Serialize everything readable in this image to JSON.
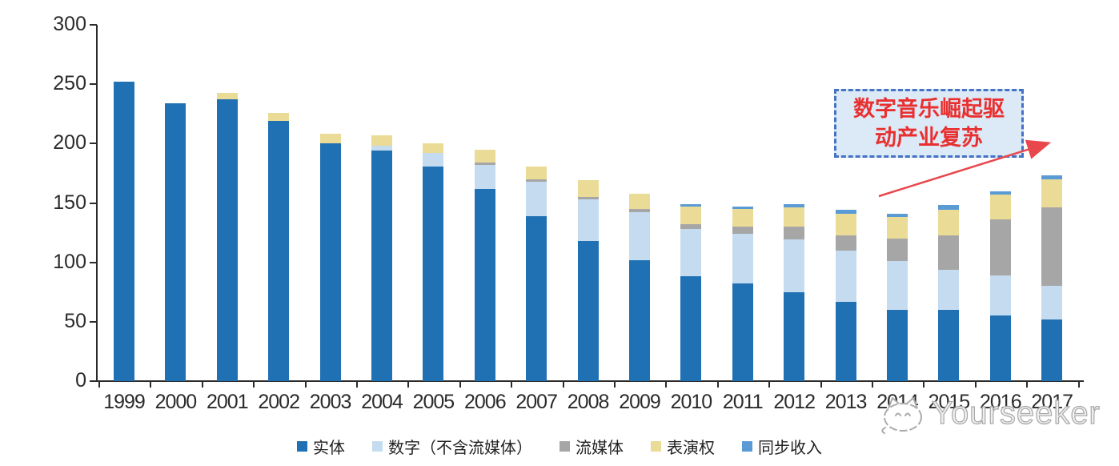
{
  "chart_data": {
    "type": "bar",
    "stacked": true,
    "title": "",
    "xlabel": "",
    "ylabel": "",
    "ylim": [
      0,
      300
    ],
    "y_ticks": [
      0,
      50,
      100,
      150,
      200,
      250,
      300
    ],
    "grid": false,
    "legend_position": "bottom",
    "categories": [
      "1999",
      "2000",
      "2001",
      "2002",
      "2003",
      "2004",
      "2005",
      "2006",
      "2007",
      "2008",
      "2009",
      "2010",
      "2011",
      "2012",
      "2013",
      "2014",
      "2015",
      "2016",
      "2017"
    ],
    "series": [
      {
        "name": "实体",
        "color": "#2070B4",
        "values": [
          252,
          234,
          237,
          219,
          200,
          194,
          181,
          162,
          139,
          118,
          102,
          88,
          82,
          75,
          67,
          60,
          60,
          55,
          52
        ]
      },
      {
        "name": "数字（不含流媒体）",
        "color": "#C5DCF0",
        "values": [
          0,
          0,
          0,
          0,
          0,
          4,
          11,
          20,
          29,
          35,
          40,
          40,
          42,
          44,
          43,
          41,
          34,
          34,
          28
        ]
      },
      {
        "name": "流媒体",
        "color": "#A6A6A6",
        "values": [
          0,
          0,
          0,
          0,
          0,
          0,
          0,
          2,
          2,
          2,
          3,
          4,
          6,
          11,
          13,
          19,
          29,
          47,
          66
        ]
      },
      {
        "name": "表演权",
        "color": "#EADB96",
        "values": [
          0,
          0,
          6,
          7,
          8,
          9,
          8,
          11,
          11,
          14,
          13,
          15,
          15,
          16,
          18,
          18,
          21,
          21,
          24
        ]
      },
      {
        "name": "同步收入",
        "color": "#5B9BD5",
        "values": [
          0,
          0,
          0,
          0,
          0,
          0,
          0,
          0,
          0,
          0,
          0,
          2,
          2,
          3,
          3,
          3,
          4,
          3,
          3
        ]
      }
    ]
  },
  "annotation": {
    "text": "数字音乐崛起驱动产业复苏",
    "box_fill": "#DCE9F6",
    "box_border": "#4472C4",
    "text_color": "#E93030",
    "arrow_color": "#E8474C"
  },
  "watermark": {
    "text": "Yourseeker",
    "icon": "cat-doodle-icon",
    "color": "#a8a8a8"
  },
  "axis_color": "#2b2b2b"
}
